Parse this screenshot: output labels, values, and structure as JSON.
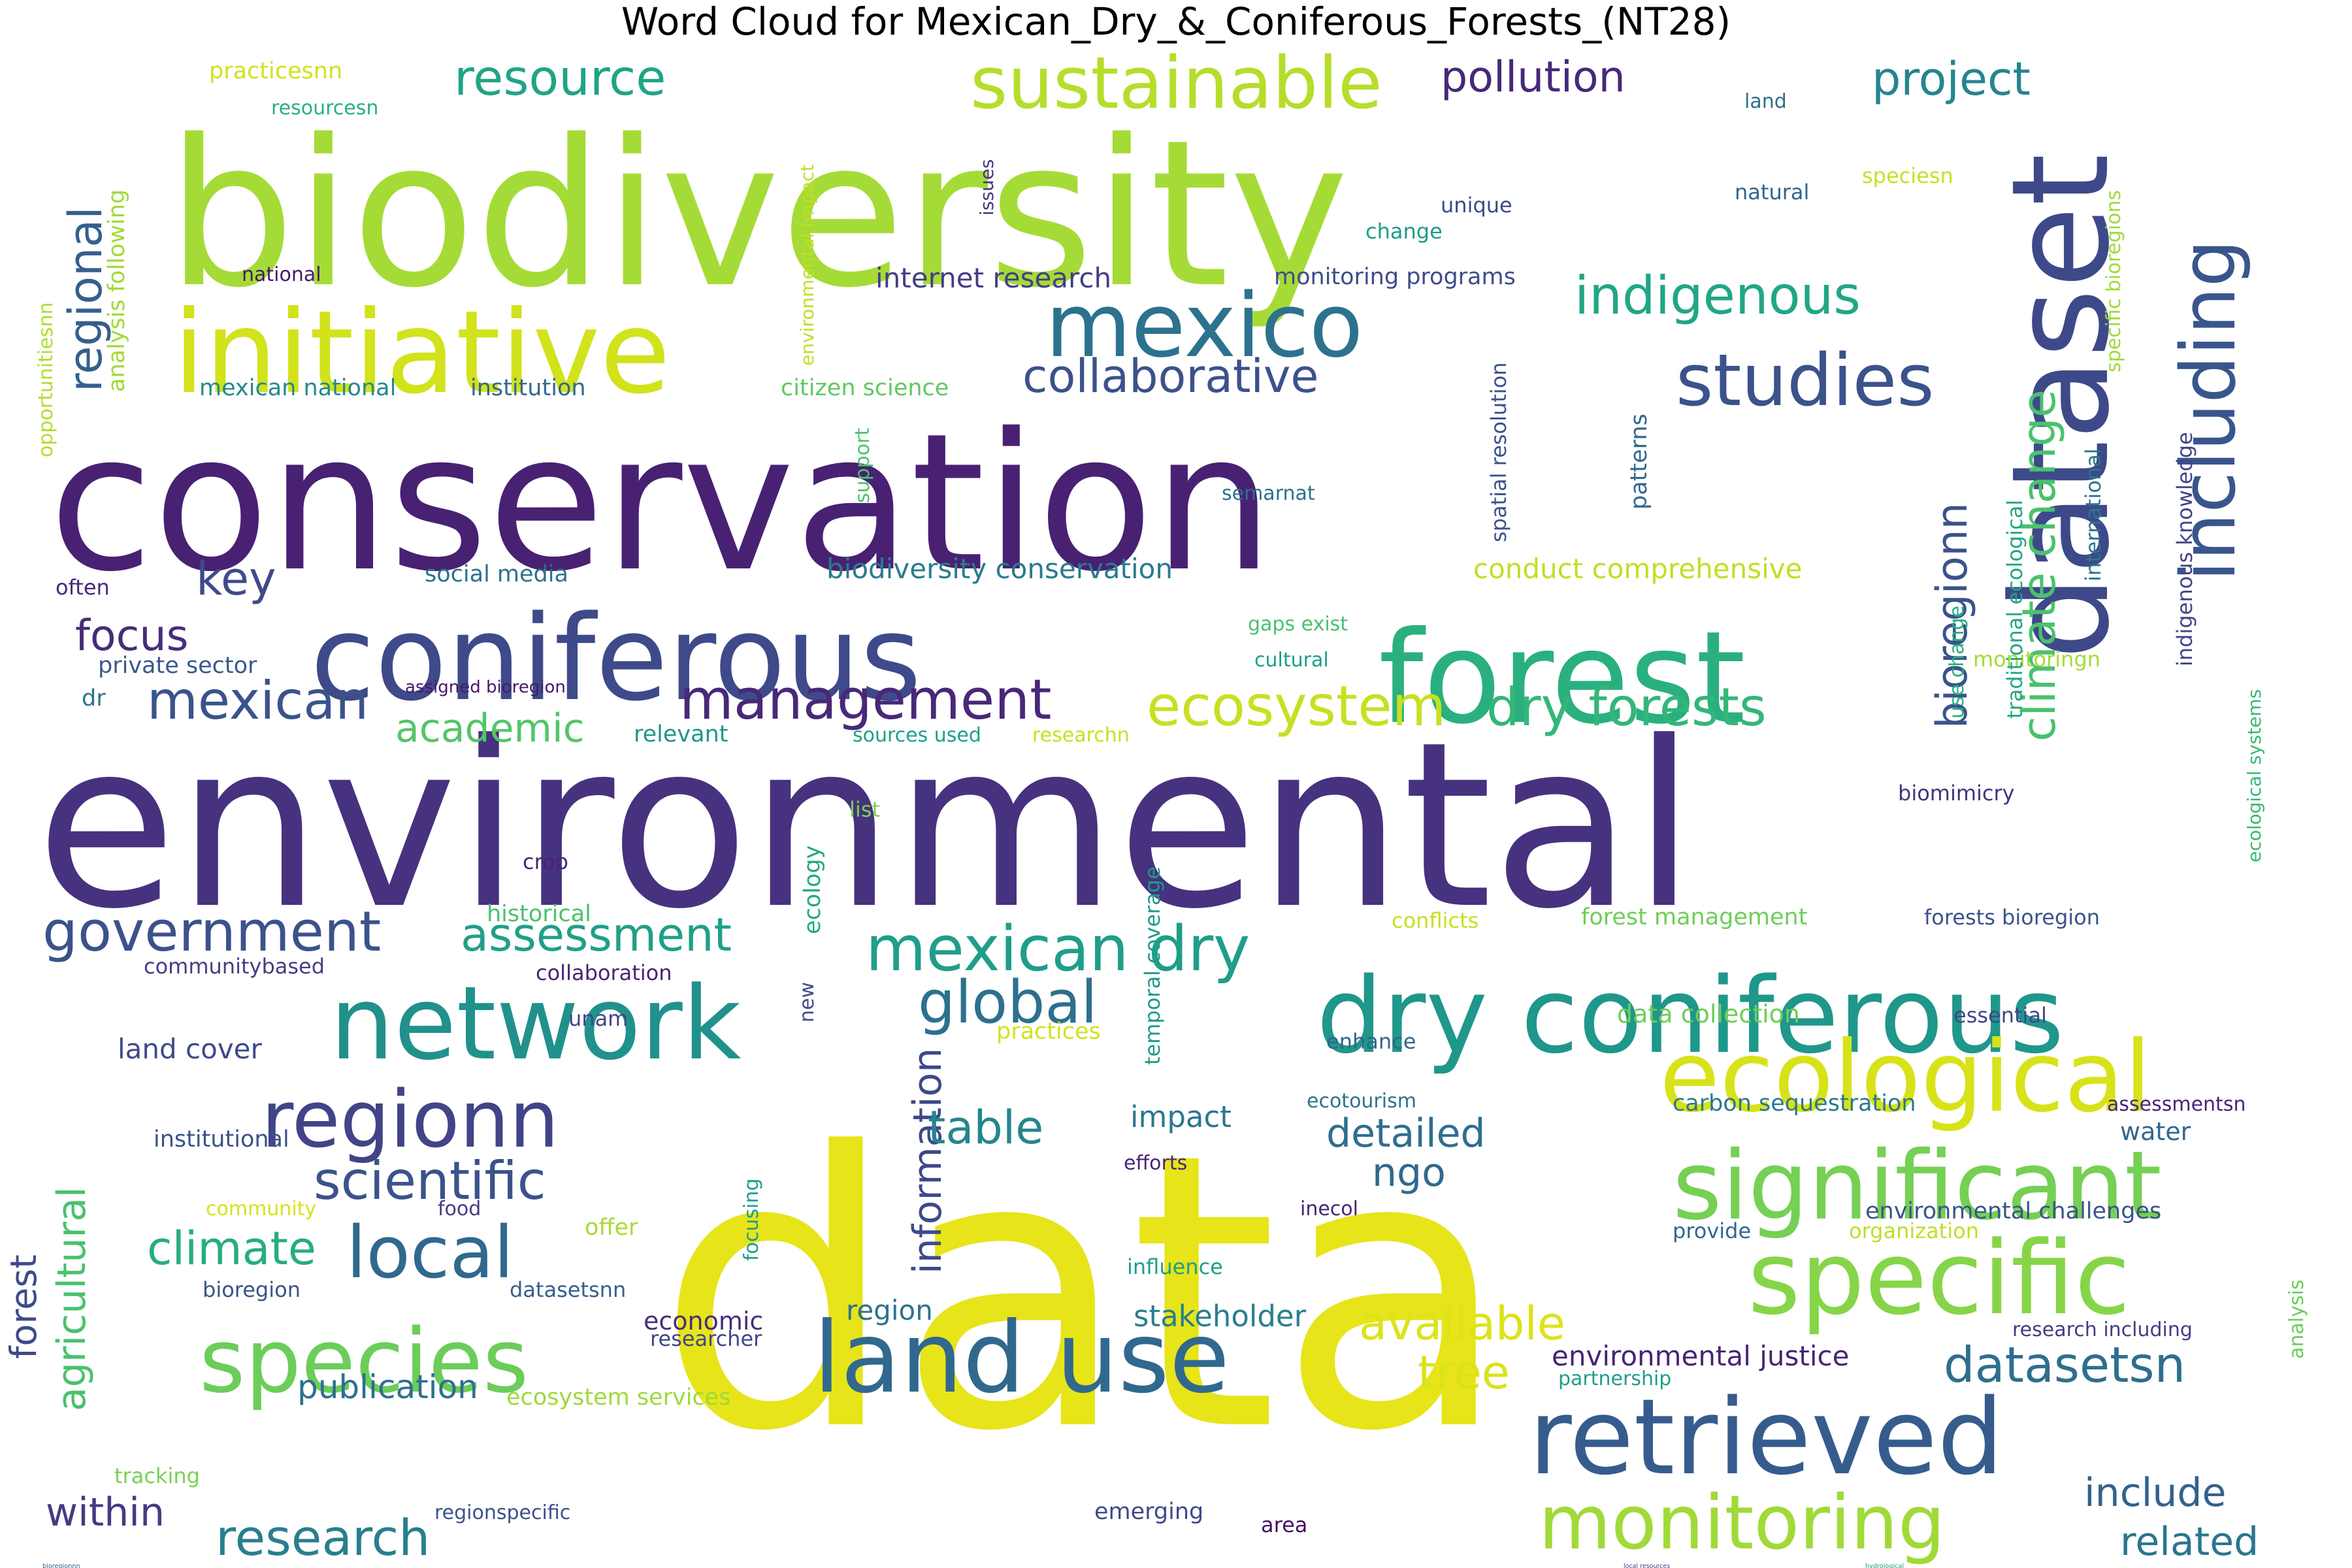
{
  "chart_data": {
    "type": "wordcloud",
    "title": "Word Cloud for Mexican_Dry_&_Coniferous_Forests_(NT28)",
    "words": [
      {
        "text": "data",
        "color": "#e7e419"
      },
      {
        "text": "environmental",
        "color": "#46327e"
      },
      {
        "text": "conservation",
        "color": "#482173"
      },
      {
        "text": "biodiversity",
        "color": "#a5db36"
      },
      {
        "text": "research",
        "color": "#277f8e"
      },
      {
        "text": "dataset",
        "color": "#3e4989"
      },
      {
        "text": "forest",
        "color": "#3e4a89"
      },
      {
        "text": "coniferous",
        "color": "#3e4a89"
      },
      {
        "text": "initiative",
        "color": "#d2e21b"
      },
      {
        "text": "dry coniferous",
        "color": "#1f978b"
      },
      {
        "text": "retrieved",
        "color": "#365c8d"
      },
      {
        "text": "land use",
        "color": "#31688e"
      },
      {
        "text": "forest",
        "color": "#2ab07f"
      },
      {
        "text": "ecological",
        "color": "#d8e219"
      },
      {
        "text": "significant",
        "color": "#75d054"
      },
      {
        "text": "specific",
        "color": "#86d549"
      },
      {
        "text": "network",
        "color": "#21918c"
      },
      {
        "text": "mexico",
        "color": "#2c728e"
      },
      {
        "text": "including",
        "color": "#39568c"
      },
      {
        "text": "species",
        "color": "#6ccd5a"
      },
      {
        "text": "studies",
        "color": "#3b528b"
      },
      {
        "text": "sustainable",
        "color": "#b5de2b"
      },
      {
        "text": "monitoring",
        "color": "#a0da39"
      },
      {
        "text": "regionn",
        "color": "#414487"
      },
      {
        "text": "local",
        "color": "#30698e"
      },
      {
        "text": "mexican dry",
        "color": "#1f9e89"
      },
      {
        "text": "government",
        "color": "#3b528b"
      },
      {
        "text": "ecosystem",
        "color": "#c8e020"
      },
      {
        "text": "dry forests",
        "color": "#34b679"
      },
      {
        "text": "management",
        "color": "#482878"
      },
      {
        "text": "indigenous",
        "color": "#21a685"
      },
      {
        "text": "global",
        "color": "#2d708e"
      },
      {
        "text": "climate change",
        "color": "#4ac16d"
      },
      {
        "text": "mexican",
        "color": "#3a538b"
      },
      {
        "text": "resource",
        "color": "#20a486"
      },
      {
        "text": "scientific",
        "color": "#3b528b"
      },
      {
        "text": "collaborative",
        "color": "#3b528b"
      },
      {
        "text": "project",
        "color": "#25858e"
      },
      {
        "text": "pollution",
        "color": "#482878"
      },
      {
        "text": "regional",
        "color": "#355f8d"
      },
      {
        "text": "datasetsn",
        "color": "#2e6e8e"
      },
      {
        "text": "agricultural",
        "color": "#4ac16d"
      },
      {
        "text": "information",
        "color": "#3e4989"
      },
      {
        "text": "assessment",
        "color": "#1fa088"
      },
      {
        "text": "climate",
        "color": "#26ad81"
      },
      {
        "text": "available",
        "color": "#dde318"
      },
      {
        "text": "bioregionn",
        "color": "#3b528b"
      },
      {
        "text": "academic",
        "color": "#54c568"
      },
      {
        "text": "focus",
        "color": "#472c7a"
      },
      {
        "text": "key",
        "color": "#3e4a89"
      },
      {
        "text": "table",
        "color": "#25858e"
      },
      {
        "text": "detailed",
        "color": "#2e6f8e"
      },
      {
        "text": "include",
        "color": "#33628d"
      },
      {
        "text": "related",
        "color": "#2a768e"
      },
      {
        "text": "tree",
        "color": "#dae319"
      },
      {
        "text": "within",
        "color": "#443b84"
      },
      {
        "text": "ngo",
        "color": "#31688e"
      },
      {
        "text": "publication",
        "color": "#2d708e"
      },
      {
        "text": "impact",
        "color": "#2a778e"
      },
      {
        "text": "stakeholder",
        "color": "#277f8e"
      },
      {
        "text": "environmental justice",
        "color": "#482475"
      },
      {
        "text": "bioregionnn",
        "color": "#33638d"
      },
      {
        "text": "internet research",
        "color": "#433e85"
      },
      {
        "text": "monitoring programs",
        "color": "#3e4c8a"
      },
      {
        "text": "mexican national",
        "color": "#23898e"
      },
      {
        "text": "institution",
        "color": "#31688e"
      },
      {
        "text": "citizen science",
        "color": "#5ec962"
      },
      {
        "text": "biodiversity conservation",
        "color": "#297b8e"
      },
      {
        "text": "conduct comprehensive",
        "color": "#c2df23"
      },
      {
        "text": "social media",
        "color": "#2c728e"
      },
      {
        "text": "private sector",
        "color": "#38598c"
      },
      {
        "text": "land cover",
        "color": "#3e4a89"
      },
      {
        "text": "communitybased",
        "color": "#433e85"
      },
      {
        "text": "collaboration",
        "color": "#482374"
      },
      {
        "text": "institutional",
        "color": "#3b528b"
      },
      {
        "text": "ecosystem services",
        "color": "#9dd93b"
      },
      {
        "text": "forest management",
        "color": "#6ece58"
      },
      {
        "text": "forests bioregion",
        "color": "#3b528b"
      },
      {
        "text": "data collection",
        "color": "#6ece58"
      },
      {
        "text": "carbon sequestration",
        "color": "#2a788e"
      },
      {
        "text": "environmental challenges",
        "color": "#3a548c"
      },
      {
        "text": "research including",
        "color": "#433d84"
      },
      {
        "text": "local resources",
        "color": "#414487"
      },
      {
        "text": "hydrological",
        "color": "#1fa088"
      },
      {
        "text": "sources used",
        "color": "#1f9f88"
      },
      {
        "text": "relevant",
        "color": "#1f968b"
      },
      {
        "text": "assigned bioregion",
        "color": "#48186a"
      },
      {
        "text": "researchn",
        "color": "#c8e020"
      },
      {
        "text": "biomimicry",
        "color": "#46337f"
      },
      {
        "text": "semarnat",
        "color": "#2d718e"
      },
      {
        "text": "cultural",
        "color": "#1f9e89"
      },
      {
        "text": "gaps exist",
        "color": "#4ac16d"
      },
      {
        "text": "monitoringn",
        "color": "#a5db36"
      },
      {
        "text": "practicesnn",
        "color": "#d2e21b"
      },
      {
        "text": "resourcesn",
        "color": "#2ab07f"
      },
      {
        "text": "land",
        "color": "#2d708e"
      },
      {
        "text": "unique",
        "color": "#3e4a89"
      },
      {
        "text": "natural",
        "color": "#32658e"
      },
      {
        "text": "speciesn",
        "color": "#c8e020"
      },
      {
        "text": "change",
        "color": "#1e9c89"
      },
      {
        "text": "issues",
        "color": "#46337f"
      },
      {
        "text": "national",
        "color": "#48186a"
      },
      {
        "text": "often",
        "color": "#482878"
      },
      {
        "text": "dr",
        "color": "#2c738e"
      },
      {
        "text": "crop",
        "color": "#482475"
      },
      {
        "text": "list",
        "color": "#7ad151"
      },
      {
        "text": "historical",
        "color": "#4ac16d"
      },
      {
        "text": "conflicts",
        "color": "#c8e020"
      },
      {
        "text": "new",
        "color": "#3e4a89"
      },
      {
        "text": "unam",
        "color": "#404688"
      },
      {
        "text": "practices",
        "color": "#d2e21b"
      },
      {
        "text": "enhance",
        "color": "#33638d"
      },
      {
        "text": "essential",
        "color": "#404688"
      },
      {
        "text": "assessmentsn",
        "color": "#482576"
      },
      {
        "text": "ecotourism",
        "color": "#2c738e"
      },
      {
        "text": "water",
        "color": "#31688e"
      },
      {
        "text": "efforts",
        "color": "#482576"
      },
      {
        "text": "community",
        "color": "#d8e219"
      },
      {
        "text": "food",
        "color": "#433d84"
      },
      {
        "text": "offer",
        "color": "#a8db34"
      },
      {
        "text": "inecol",
        "color": "#482475"
      },
      {
        "text": "provide",
        "color": "#31688e"
      },
      {
        "text": "organization",
        "color": "#bddf26"
      },
      {
        "text": "influence",
        "color": "#1f9e89"
      },
      {
        "text": "bioregion",
        "color": "#3b528b"
      },
      {
        "text": "datasetsnn",
        "color": "#355f8d"
      },
      {
        "text": "economic",
        "color": "#472d7b"
      },
      {
        "text": "region",
        "color": "#2c728e"
      },
      {
        "text": "researcher",
        "color": "#404688"
      },
      {
        "text": "partnership",
        "color": "#1f9f88"
      },
      {
        "text": "tracking",
        "color": "#7ad151"
      },
      {
        "text": "regionspecific",
        "color": "#3b528b"
      },
      {
        "text": "emerging",
        "color": "#3e4a89"
      },
      {
        "text": "area",
        "color": "#471164"
      },
      {
        "text": "analysis following",
        "color": "#a2da37"
      },
      {
        "text": "opportunitiesnn",
        "color": "#b2dd2d"
      },
      {
        "text": "environmental impact",
        "color": "#c0df25"
      },
      {
        "text": "support",
        "color": "#4ec36b"
      },
      {
        "text": "spatial resolution",
        "color": "#3b528b"
      },
      {
        "text": "patterns",
        "color": "#31688e"
      },
      {
        "text": "ecology",
        "color": "#22a884"
      },
      {
        "text": "temporal coverage",
        "color": "#1f9a8a"
      },
      {
        "text": "focusing",
        "color": "#1f9e89"
      },
      {
        "text": "use change",
        "color": "#29af7f"
      },
      {
        "text": "traditional ecological",
        "color": "#21a685"
      },
      {
        "text": "international",
        "color": "#2a768e"
      },
      {
        "text": "specific bioregions",
        "color": "#9fda3a"
      },
      {
        "text": "indigenous knowledge",
        "color": "#414487"
      },
      {
        "text": "ecological systems",
        "color": "#37b878"
      },
      {
        "text": "analysis",
        "color": "#6ccd5a"
      }
    ]
  }
}
